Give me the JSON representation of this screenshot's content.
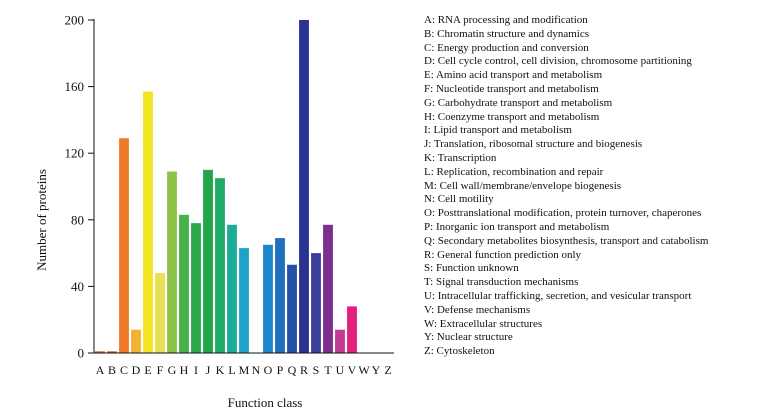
{
  "chart_data": {
    "type": "bar",
    "xlabel": "Function class",
    "ylabel": "Number of proteins",
    "ylim": [
      0,
      200
    ],
    "yticks": [
      0,
      40,
      80,
      120,
      160,
      200
    ],
    "grid": false,
    "categories": [
      "A",
      "B",
      "C",
      "D",
      "E",
      "F",
      "G",
      "H",
      "I",
      "J",
      "K",
      "L",
      "M",
      "N",
      "O",
      "P",
      "Q",
      "R",
      "S",
      "T",
      "U",
      "V",
      "W",
      "Y",
      "Z"
    ],
    "values": [
      1,
      1,
      129,
      14,
      157,
      48,
      109,
      83,
      78,
      110,
      105,
      77,
      63,
      0,
      65,
      69,
      53,
      200,
      60,
      77,
      14,
      28,
      0,
      0,
      0
    ],
    "colors": [
      "#d05a3a",
      "#d0572f",
      "#f07a2a",
      "#f2b233",
      "#f2e622",
      "#e8e052",
      "#8cc44a",
      "#45b24a",
      "#2ba84c",
      "#23a64a",
      "#1eab66",
      "#1aae99",
      "#1ea3c8",
      "#1c8fce",
      "#1c86cc",
      "#1f6fba",
      "#2252a8",
      "#2a3292",
      "#3c3f98",
      "#7d2f90",
      "#c23a93",
      "#e3207c",
      "#d61a7a",
      "#c8407a",
      "#b84a6a"
    ],
    "legend": [
      {
        "code": "A",
        "label": "RNA processing and modification"
      },
      {
        "code": "B",
        "label": "Chromatin structure and dynamics"
      },
      {
        "code": "C",
        "label": "Energy production and conversion"
      },
      {
        "code": "D",
        "label": "Cell cycle control, cell division, chromosome partitioning"
      },
      {
        "code": "E",
        "label": "Amino acid transport and metabolism"
      },
      {
        "code": "F",
        "label": "Nucleotide transport and metabolism"
      },
      {
        "code": "G",
        "label": "Carbohydrate transport and metabolism"
      },
      {
        "code": "H",
        "label": "Coenzyme transport and metabolism"
      },
      {
        "code": "I",
        "label": "Lipid transport and metabolism"
      },
      {
        "code": "J",
        "label": "Translation, ribosomal structure and biogenesis"
      },
      {
        "code": "K",
        "label": "Transcription"
      },
      {
        "code": "L",
        "label": "Replication, recombination and repair"
      },
      {
        "code": "M",
        "label": "Cell wall/membrane/envelope biogenesis"
      },
      {
        "code": "N",
        "label": "Cell motility"
      },
      {
        "code": "O",
        "label": "Posttranslational modification, protein turnover, chaperones"
      },
      {
        "code": "P",
        "label": "Inorganic ion transport and metabolism"
      },
      {
        "code": "Q",
        "label": "Secondary metabolites biosynthesis, transport and catabolism"
      },
      {
        "code": "R",
        "label": "General function prediction only"
      },
      {
        "code": "S",
        "label": "Function unknown"
      },
      {
        "code": "T",
        "label": "Signal transduction mechanisms"
      },
      {
        "code": "U",
        "label": "Intracellular trafficking, secretion, and vesicular transport"
      },
      {
        "code": "V",
        "label": "Defense mechanisms"
      },
      {
        "code": "W",
        "label": "Extracellular structures"
      },
      {
        "code": "Y",
        "label": "Nuclear structure"
      },
      {
        "code": "Z",
        "label": "Cytoskeleton"
      }
    ]
  }
}
